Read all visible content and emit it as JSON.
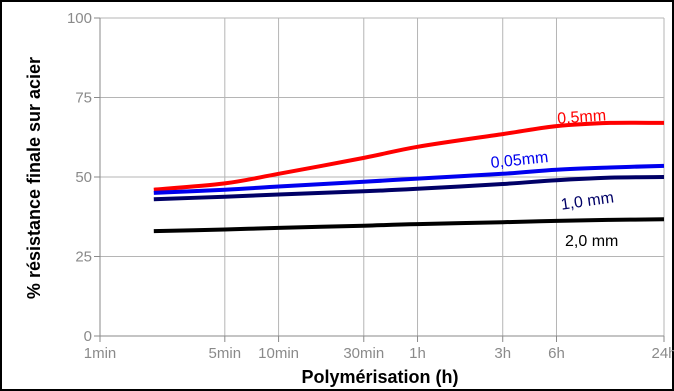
{
  "chart_data": {
    "type": "line",
    "xlabel": "Polymérisation (h)",
    "ylabel": "% résistance finale sur acier",
    "ylim": [
      0,
      100
    ],
    "yticks": [
      0,
      25,
      50,
      75,
      100
    ],
    "x_scale": "log",
    "x_unit": "minutes",
    "xlim": [
      1,
      1440
    ],
    "xticks": [
      {
        "label": "1min",
        "value": 1
      },
      {
        "label": "5min",
        "value": 5
      },
      {
        "label": "10min",
        "value": 10
      },
      {
        "label": "30min",
        "value": 30
      },
      {
        "label": "1h",
        "value": 60
      },
      {
        "label": "3h",
        "value": 180
      },
      {
        "label": "6h",
        "value": 360
      },
      {
        "label": "24h",
        "value": 1440
      }
    ],
    "grid": true,
    "series": [
      {
        "name": "0,5mm",
        "color": "#ff0000",
        "x": [
          2,
          5,
          10,
          30,
          60,
          180,
          360,
          720,
          1440
        ],
        "values": [
          46,
          48,
          51,
          56,
          59.5,
          63.5,
          66,
          67,
          67
        ]
      },
      {
        "name": "0,05mm",
        "color": "#0000ee",
        "x": [
          2,
          5,
          10,
          30,
          60,
          180,
          360,
          720,
          1440
        ],
        "values": [
          45,
          46,
          47,
          48.5,
          49.5,
          51,
          52.3,
          53,
          53.5
        ]
      },
      {
        "name": "1,0 mm",
        "color": "#000066",
        "x": [
          2,
          5,
          10,
          30,
          60,
          180,
          360,
          720,
          1440
        ],
        "values": [
          43,
          43.8,
          44.5,
          45.5,
          46.3,
          47.8,
          49,
          49.8,
          50
        ]
      },
      {
        "name": "2,0 mm",
        "color": "#000000",
        "x": [
          2,
          5,
          10,
          30,
          60,
          180,
          360,
          720,
          1440
        ],
        "values": [
          33,
          33.5,
          34,
          34.7,
          35.2,
          35.8,
          36.2,
          36.5,
          36.7
        ]
      }
    ]
  }
}
